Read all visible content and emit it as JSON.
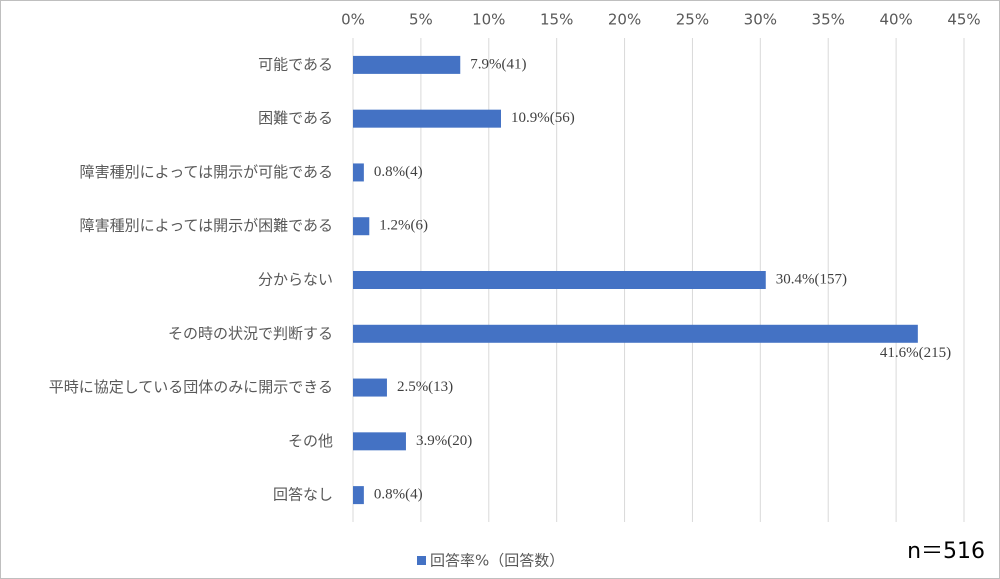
{
  "chart_data": {
    "type": "bar",
    "orientation": "horizontal",
    "categories": [
      "可能である",
      "困難である",
      "障害種別によっては開示が可能である",
      "障害種別によっては開示が困難である",
      "分からない",
      "その時の状況で判断する",
      "平時に協定している団体のみに開示できる",
      "その他",
      "回答なし"
    ],
    "series": [
      {
        "name": "回答率%（回答数）",
        "color": "#4472c4",
        "values": [
          7.9,
          10.9,
          0.8,
          1.2,
          30.4,
          41.6,
          2.5,
          3.9,
          0.8
        ],
        "value_labels": [
          "7.9%(41)",
          "10.9%(56)",
          "0.8%(4)",
          "1.2%(6)",
          "30.4%(157)",
          "41.6%(215)",
          "2.5%(13)",
          "3.9%(20)",
          "0.8%(4)"
        ]
      }
    ],
    "xlim": [
      0,
      45
    ],
    "xticks": [
      {
        "value": 0,
        "label": "0%"
      },
      {
        "value": 5,
        "label": "5%"
      },
      {
        "value": 10,
        "label": "10%"
      },
      {
        "value": 15,
        "label": "15%"
      },
      {
        "value": 20,
        "label": "20%"
      },
      {
        "value": 25,
        "label": "25%"
      },
      {
        "value": 30,
        "label": "30%"
      },
      {
        "value": 35,
        "label": "35%"
      },
      {
        "value": 40,
        "label": "40%"
      },
      {
        "value": 45,
        "label": "45%"
      }
    ],
    "grid": true,
    "legend": "bottom",
    "annotation": "n＝516"
  }
}
